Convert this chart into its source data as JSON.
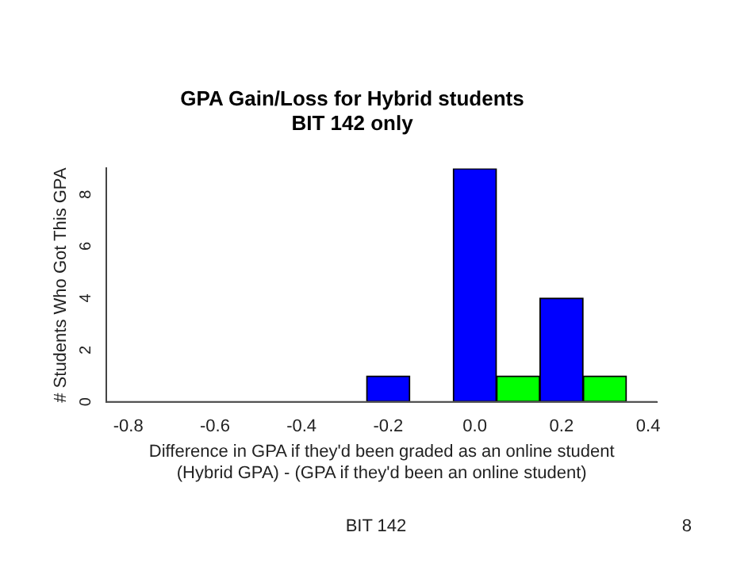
{
  "chart_data": {
    "type": "bar",
    "title": "GPA Gain/Loss for Hybrid students",
    "subtitle": "BIT 142 only",
    "xlabel": "Difference in GPA if they'd been graded as an online student\n(Hybrid GPA) - (GPA if they'd been an online student)",
    "ylabel": "# Students Who Got This GPA",
    "series": [
      {
        "color": "#0000ff",
        "x": [
          -0.2,
          0.0,
          0.2
        ],
        "values": [
          1,
          9,
          4
        ]
      },
      {
        "color": "#00ff00",
        "x": [
          0.1,
          0.3
        ],
        "values": [
          1,
          1
        ]
      }
    ],
    "xlim": [
      -0.85,
      0.42
    ],
    "xticks": [
      {
        "value": -0.8,
        "label": "-0.8"
      },
      {
        "value": -0.6,
        "label": "-0.6"
      },
      {
        "value": -0.4,
        "label": "-0.4"
      },
      {
        "value": -0.2,
        "label": "-0.2"
      },
      {
        "value": 0,
        "label": "0.0"
      },
      {
        "value": 0.2,
        "label": "0.2"
      },
      {
        "value": 0.4,
        "label": "0.4"
      }
    ],
    "ylim": [
      0,
      9
    ],
    "yticks": [
      0,
      2,
      4,
      6,
      8
    ],
    "ref_lines": [
      {
        "axis": "y",
        "value": 0
      }
    ],
    "annotations": [
      "BIT 142",
      "8"
    ],
    "grid": false,
    "legend": false
  }
}
